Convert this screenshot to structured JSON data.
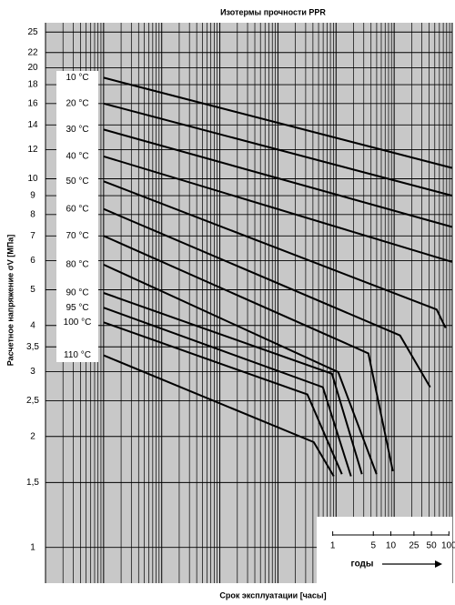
{
  "chart_data": {
    "type": "line",
    "title": "Изотермы прочности PPR",
    "xlabel": "Срок эксплуатации [часы]",
    "ylabel": "Расчетное напряжение σV [МПа]",
    "xscale": "log",
    "yscale": "log",
    "color": "#000000",
    "background": "#c8c8c8",
    "xlim": [
      0.1,
      1000000
    ],
    "ylim": [
      0.8,
      26.5
    ],
    "xgrid": [
      0.1,
      1,
      10,
      100,
      1000,
      10000,
      100000,
      1000000
    ],
    "minor_grid": true,
    "yticks": [
      1,
      {
        "value": 1.5,
        "label": "1,5"
      },
      2,
      {
        "value": 2.5,
        "label": "2,5"
      },
      3,
      {
        "value": 3.5,
        "label": "3,5"
      },
      4,
      5,
      6,
      7,
      8,
      9,
      10,
      12,
      14,
      16,
      18,
      20,
      22,
      25
    ],
    "year_axis": {
      "label": "годы",
      "ticks": [
        {
          "value": 8760,
          "label": "1"
        },
        {
          "value": 43800,
          "label": "5"
        },
        {
          "value": 87600,
          "label": "10"
        },
        {
          "value": 219000,
          "label": "25"
        },
        {
          "value": 438000,
          "label": "50"
        },
        {
          "value": 876000,
          "label": "100"
        }
      ]
    },
    "series": [
      {
        "name": "10 °C",
        "x": [
          1,
          1000000
        ],
        "y": [
          18.8,
          10.7
        ]
      },
      {
        "name": "20 °C",
        "x": [
          1,
          1000000
        ],
        "y": [
          16.0,
          9.0
        ]
      },
      {
        "name": "30 °C",
        "x": [
          1,
          1000000
        ],
        "y": [
          13.6,
          7.4
        ]
      },
      {
        "name": "40 °C",
        "x": [
          1,
          1000000
        ],
        "y": [
          11.5,
          5.95
        ]
      },
      {
        "name": "50 °C",
        "x": [
          1,
          537000,
          769000
        ],
        "y": [
          9.84,
          4.42,
          3.94
        ]
      },
      {
        "name": "60 °C",
        "x": [
          1,
          126000,
          417000
        ],
        "y": [
          8.28,
          3.76,
          2.72
        ]
      },
      {
        "name": "70 °C",
        "x": [
          1,
          36000,
          95000
        ],
        "y": [
          7.0,
          3.36,
          1.61
        ]
      },
      {
        "name": "80 °C",
        "x": [
          1,
          10900,
          49700
        ],
        "y": [
          5.85,
          2.99,
          1.58
        ]
      },
      {
        "name": "90 °C",
        "x": [
          1,
          8500,
          27900
        ],
        "y": [
          4.9,
          2.96,
          1.58
        ]
      },
      {
        "name": "95 °C",
        "x": [
          1,
          5930,
          18100
        ],
        "y": [
          4.47,
          2.72,
          1.56
        ]
      },
      {
        "name": "100 °C",
        "x": [
          1,
          3210,
          12600
        ],
        "y": [
          4.08,
          2.6,
          1.58
        ]
      },
      {
        "name": "110 °C",
        "x": [
          1,
          4140,
          9140
        ],
        "y": [
          3.32,
          1.93,
          1.56
        ]
      }
    ]
  }
}
